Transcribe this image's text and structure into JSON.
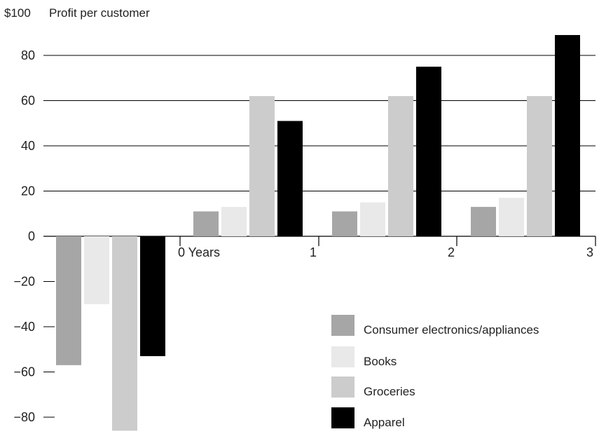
{
  "chart_data": {
    "type": "bar",
    "title": "Profit per customer",
    "ymax_label": "$100",
    "ylim": [
      -90,
      100
    ],
    "yticks": [
      80,
      60,
      40,
      20,
      0,
      -20,
      -40,
      -60,
      -80
    ],
    "categories": [
      "0 Years",
      "1",
      "2",
      "3"
    ],
    "series": [
      {
        "name": "Consumer electronics/appliances",
        "color": "#a6a6a6",
        "values": [
          -57,
          11,
          11,
          13
        ]
      },
      {
        "name": "Books",
        "color": "#e9e9e9",
        "values": [
          -30,
          13,
          15,
          17
        ]
      },
      {
        "name": "Groceries",
        "color": "#cccccc",
        "values": [
          -86,
          62,
          62,
          62
        ]
      },
      {
        "name": "Apparel",
        "color": "#000000",
        "values": [
          -53,
          51,
          75,
          89
        ]
      }
    ],
    "grid": true,
    "legend": "bottom-right"
  }
}
